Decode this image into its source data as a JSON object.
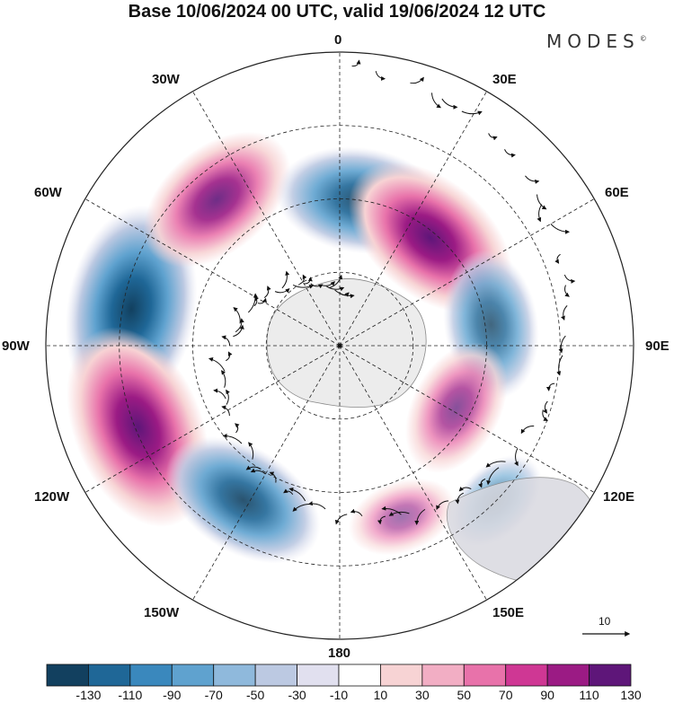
{
  "title": "Base 10/06/2024 00 UTC, valid 19/06/2024 12 UTC",
  "brand": "MODES",
  "brand_mark": "©",
  "longitude_labels": [
    "0",
    "30E",
    "60E",
    "90E",
    "120E",
    "150E",
    "180",
    "150W",
    "120W",
    "90W",
    "60W",
    "30W"
  ],
  "colorbar": {
    "tick_labels": [
      "-130",
      "-110",
      "-90",
      "-70",
      "-50",
      "-30",
      "-10",
      "10",
      "30",
      "50",
      "70",
      "90",
      "110",
      "130"
    ],
    "colors": [
      "#12405f",
      "#1f6797",
      "#3a88bd",
      "#5fa2cf",
      "#8fb9dc",
      "#bcc9e2",
      "#e1e0ef",
      "#ffffff",
      "#f7d3d4",
      "#f2aec4",
      "#e872aa",
      "#cf3794",
      "#9b1b84",
      "#5e1679"
    ]
  },
  "reference_vector": {
    "label": "10"
  },
  "map_data": {
    "projection": "south-polar-stereographic",
    "anomaly_centers": [
      {
        "lon": -80,
        "colat": 0.72,
        "value": -130
      },
      {
        "lon": -112,
        "colat": 0.74,
        "value": 130
      },
      {
        "lon": -40,
        "colat": 0.65,
        "value": 90
      },
      {
        "lon": -148,
        "colat": 0.62,
        "value": -90
      },
      {
        "lon": 8,
        "colat": 0.5,
        "value": -90
      },
      {
        "lon": 40,
        "colat": 0.48,
        "value": 110
      },
      {
        "lon": 82,
        "colat": 0.52,
        "value": -70
      },
      {
        "lon": 118,
        "colat": 0.45,
        "value": 60
      },
      {
        "lon": 160,
        "colat": 0.62,
        "value": 30
      },
      {
        "lon": 135,
        "colat": 0.75,
        "value": -30
      }
    ]
  }
}
